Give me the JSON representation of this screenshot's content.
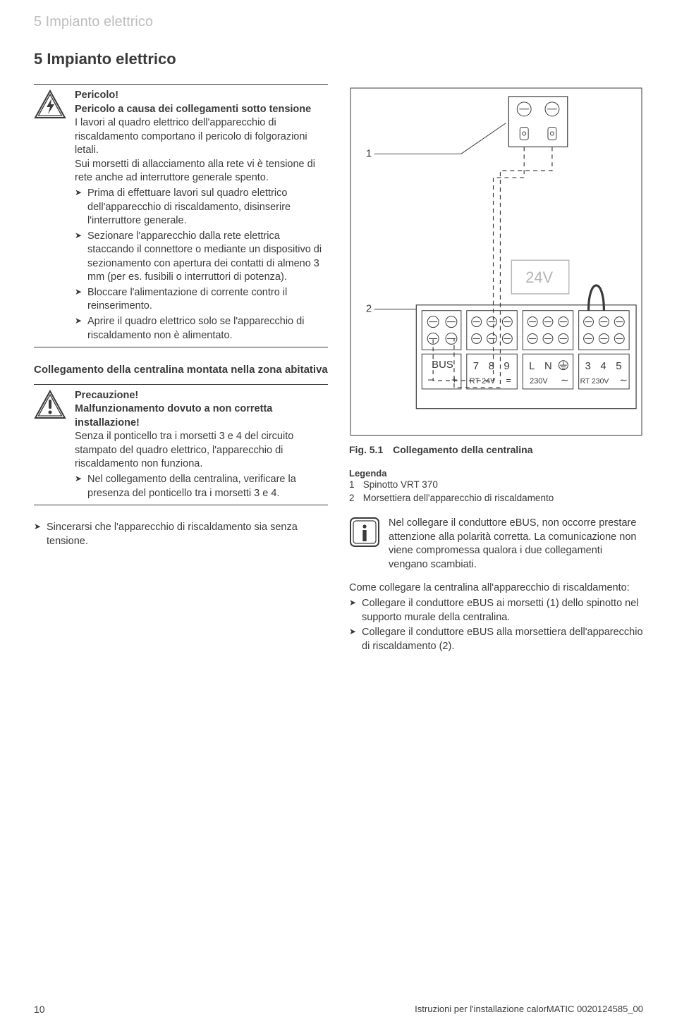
{
  "page": {
    "running_header": "5  Impianto elettrico",
    "section_title": "5   Impianto elettrico",
    "footer_right": "Istruzioni per l'installazione calorMATIC 0020124585_00",
    "page_number": "10"
  },
  "danger": {
    "title": "Pericolo!",
    "sub": "Pericolo a causa dei collegamenti sotto tensione",
    "body1": "I lavori al quadro elettrico dell'apparecchio di riscaldamento comportano il pericolo di folgorazioni letali.",
    "body2": "Sui morsetti di allacciamento alla rete vi è tensione di rete anche ad interruttore generale spento.",
    "bullets": [
      "Prima di effettuare lavori sul quadro elettrico dell'apparecchio di riscaldamento, disinserire l'interruttore generale.",
      "Sezionare l'apparecchio dalla rete elettrica staccando il connettore o mediante un dispositivo di sezionamento con apertura dei contatti di almeno 3 mm (per es. fusibili o interruttori di potenza).",
      "Bloccare l'alimentazione di corrente contro il reinserimento.",
      "Aprire il quadro elettrico solo se l'apparecchio di riscaldamento non è alimentato."
    ]
  },
  "mount_heading": "Collegamento della centralina montata nella zona abitativa",
  "caution": {
    "title": "Precauzione!",
    "sub": "Malfunzionamento dovuto a non corretta installazione!",
    "body": "Senza il ponticello tra i morsetti 3 e 4 del circuito stampato del quadro elettrico, l'apparecchio di riscaldamento non funziona.",
    "bullets": [
      "Nel collegamento della centralina, verificare la presenza del ponticello tra i morsetti 3 e 4."
    ]
  },
  "outside_bullet": "Sincerarsi che l'apparecchio di riscaldamento sia senza tensione.",
  "figure": {
    "number": "Fig. 5.1",
    "title": "Collegamento della centralina",
    "legend_title": "Legenda",
    "legend": [
      {
        "n": "1",
        "text": "Spinotto VRT 370"
      },
      {
        "n": "2",
        "text": "Morsettiera dell'apparecchio di riscaldamento"
      }
    ],
    "voltage_label": "24V",
    "terminal_labels": {
      "bus": "BUS",
      "minus": "−",
      "plus": "+",
      "row2": [
        "7",
        "8",
        "9"
      ],
      "rt24": "RT 24V",
      "row3": [
        "L",
        "N"
      ],
      "v230": "230V",
      "row4": [
        "3",
        "4",
        "5"
      ],
      "rt230": "RT 230V"
    },
    "leader_labels": {
      "one": "1",
      "two": "2"
    }
  },
  "info": {
    "text": "Nel collegare il conduttore eBUS, non occorre prestare attenzione alla polarità corretta. La comunicazione non viene compromessa qualora i due collegamenti vengano scambiati."
  },
  "connect": {
    "intro": "Come collegare la centralina all'apparecchio di riscaldamento:",
    "bullets": [
      "Collegare il conduttore eBUS ai morsetti (1) dello spinotto nel supporto murale della centralina.",
      "Collegare il conduttore eBUS alla morsettiera dell'apparecchio di riscaldamento (2)."
    ]
  },
  "colors": {
    "text": "#3a3a3a",
    "light": "#bdbdbd",
    "rule": "#3a3a3a"
  }
}
